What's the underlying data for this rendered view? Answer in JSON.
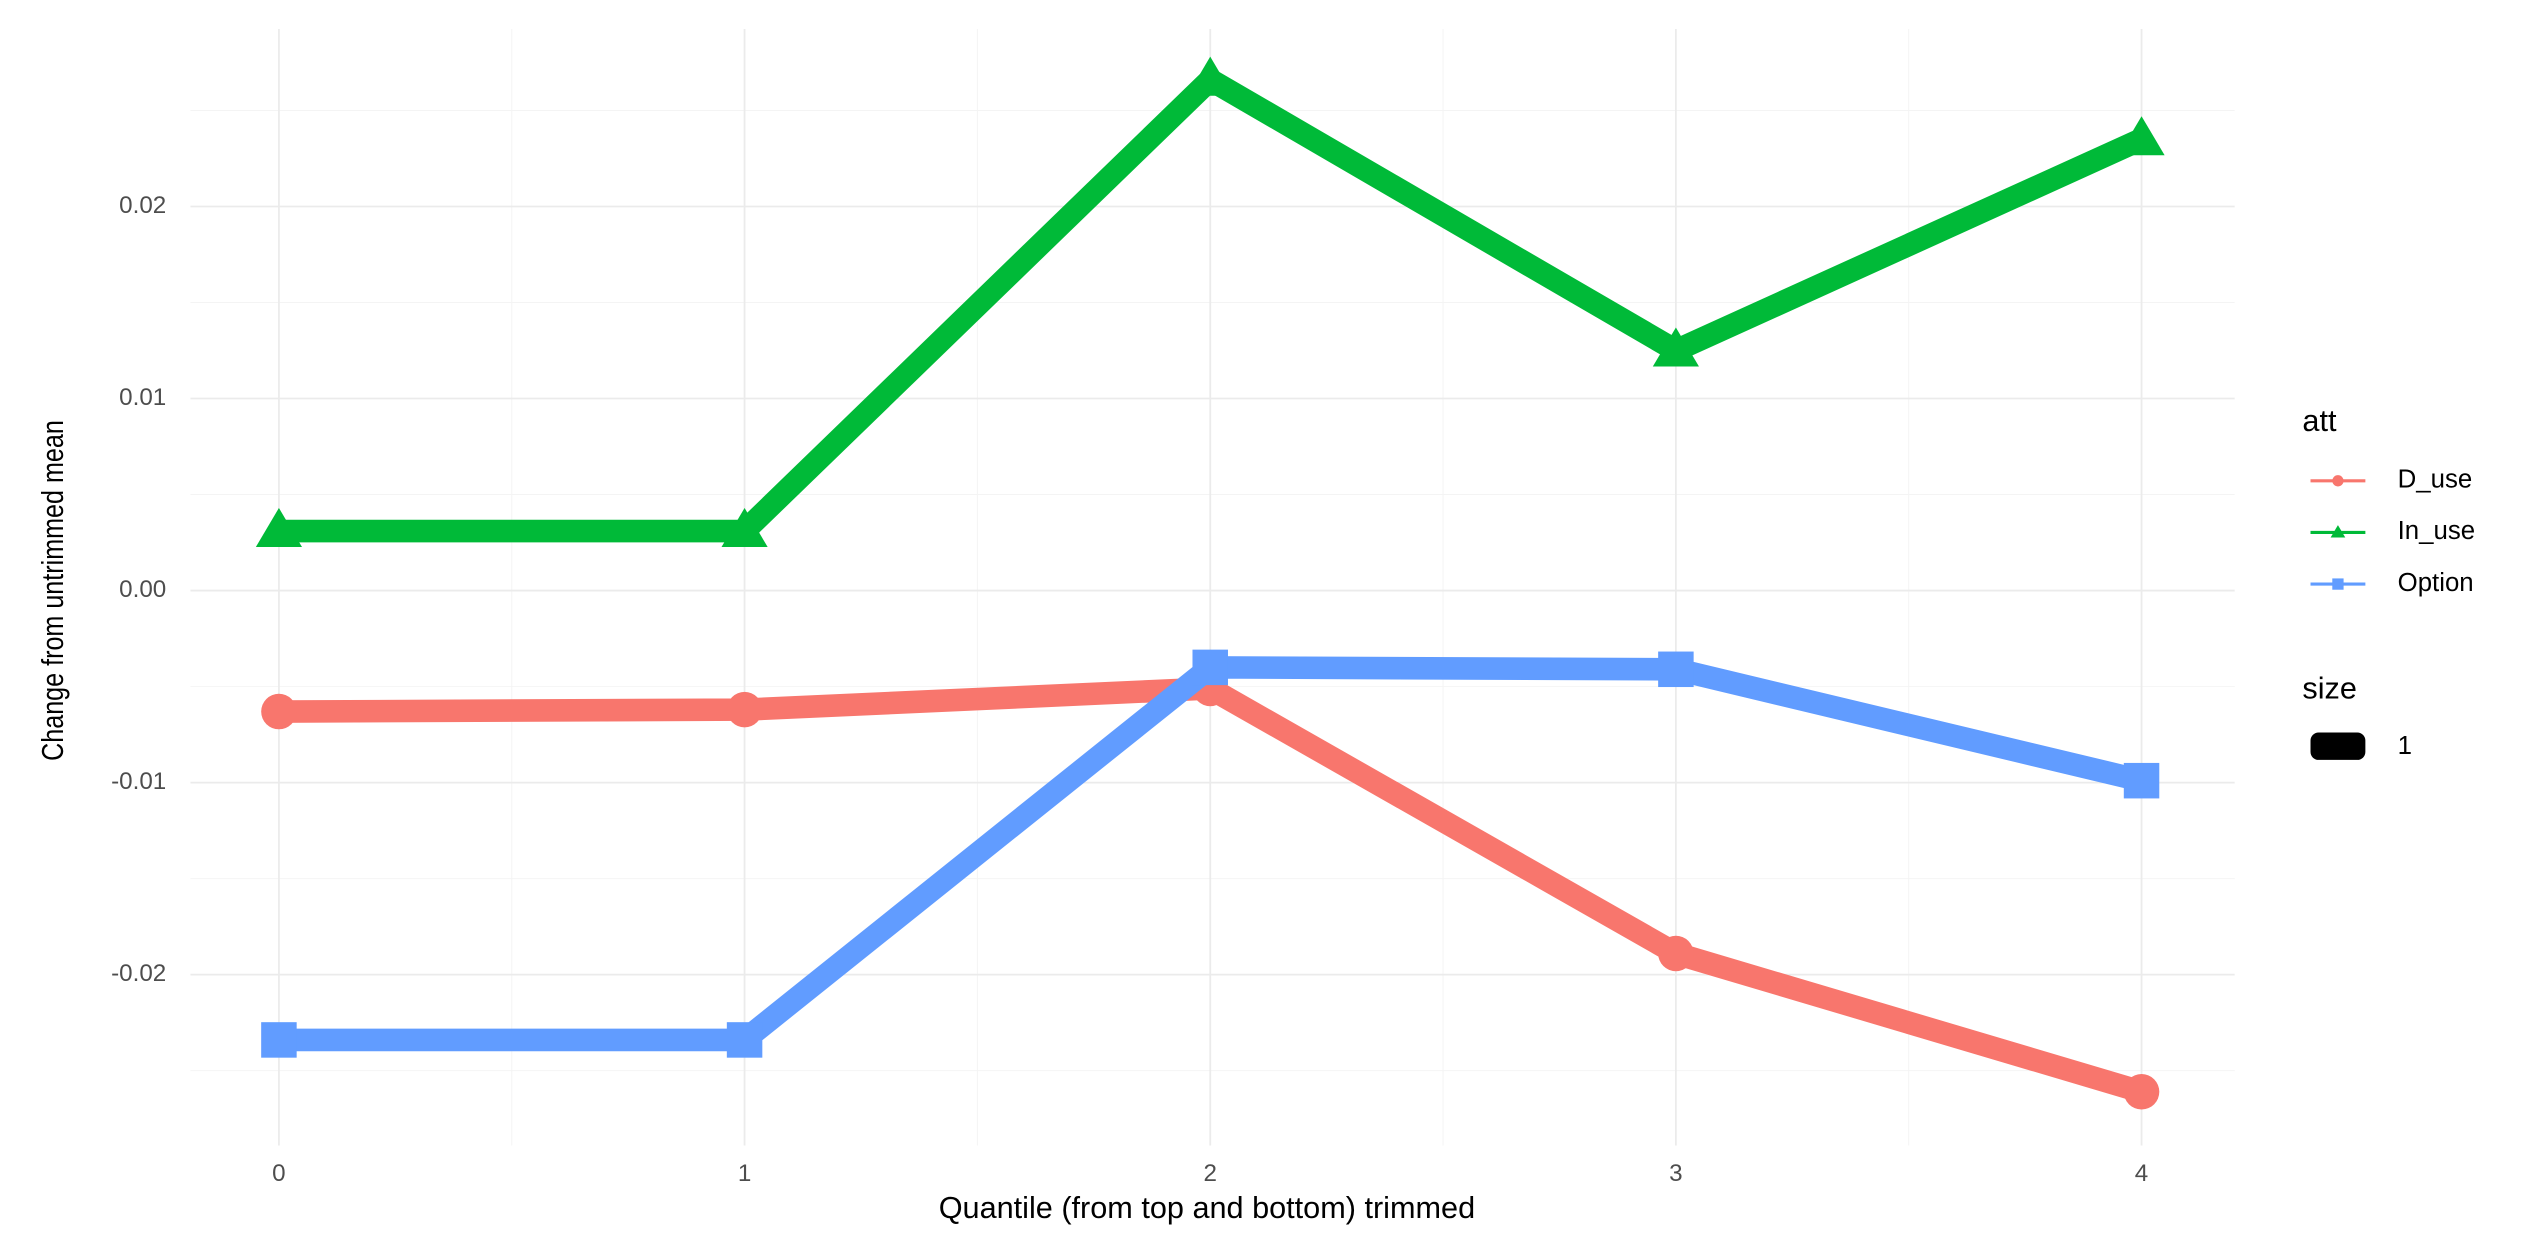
{
  "chart_data": {
    "type": "line",
    "x_label": "Quantile (from top and bottom) trimmed",
    "y_label": "Change from untrimmed mean",
    "x": [
      0,
      1,
      2,
      3,
      4
    ],
    "xlim": [
      -0.19,
      4.2
    ],
    "xticks": [
      0,
      1,
      2,
      3,
      4
    ],
    "ylim": [
      -0.0289,
      0.02924
    ],
    "yticks": [
      -0.02,
      -0.01,
      {
        "value": 0,
        "label": "0.00"
      },
      0.01,
      0.02
    ],
    "grid": true,
    "legend_title": "att",
    "series": [
      {
        "name": "D_use",
        "color": "#F8766D",
        "marker": "circle",
        "values": [
          -0.0063,
          -0.0062,
          -0.0051,
          -0.0189,
          -0.0261
        ]
      },
      {
        "name": "In_use",
        "color": "#00BA38",
        "marker": "triangle",
        "values": [
          0.0031,
          0.0031,
          0.0266,
          0.0125,
          0.0235
        ]
      },
      {
        "name": "Option",
        "color": "#619CFF",
        "marker": "square",
        "values": [
          -0.0234,
          -0.0234,
          -0.004,
          -0.0041,
          -0.0099
        ]
      }
    ],
    "size_legend": {
      "title": "size",
      "labels": [
        "1"
      ]
    }
  }
}
